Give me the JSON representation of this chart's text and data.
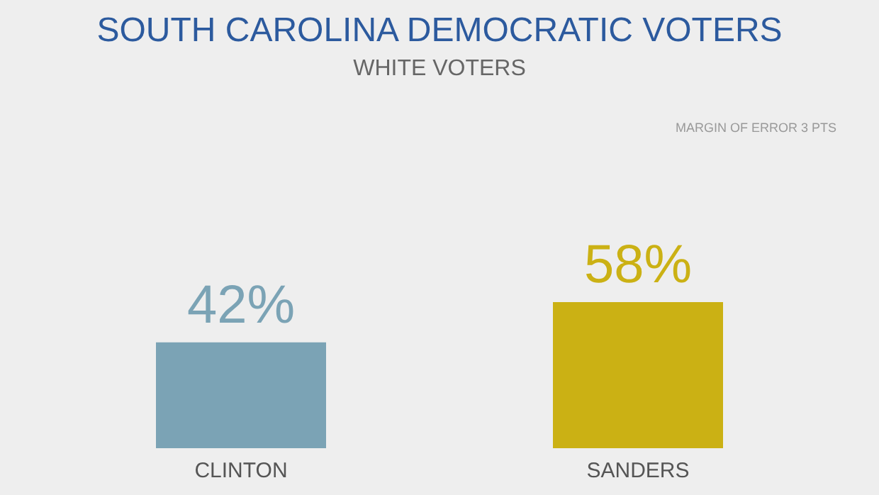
{
  "chart_data": {
    "type": "bar",
    "title": "SOUTH CAROLINA DEMOCRATIC VOTERS",
    "subtitle": "WHITE VOTERS",
    "annotations": [
      "MARGIN OF ERROR 3 PTS"
    ],
    "categories": [
      "CLINTON",
      "SANDERS"
    ],
    "values": [
      42,
      58
    ],
    "value_labels": [
      "42%",
      "58%"
    ],
    "colors": [
      "#7ba3b5",
      "#cbb114"
    ],
    "tick_labels": "x",
    "grid": false
  }
}
